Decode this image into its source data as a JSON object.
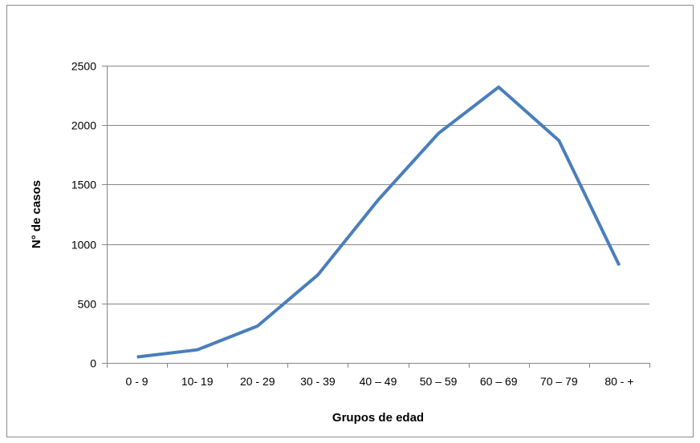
{
  "chart_data": {
    "type": "line",
    "title": "",
    "xlabel": "Grupos de edad",
    "ylabel": "N° de casos",
    "categories": [
      "0 - 9",
      "10- 19",
      "20 - 29",
      "30 - 39",
      "40 – 49",
      "50 – 59",
      "60 – 69",
      "70 – 79",
      "80 - +"
    ],
    "series": [
      {
        "values": [
          50,
          110,
          310,
          740,
          1370,
          1930,
          2320,
          1870,
          820
        ]
      }
    ],
    "ylim": [
      0,
      2500
    ],
    "yticks": [
      0,
      500,
      1000,
      1500,
      2000,
      2500
    ],
    "grid": true,
    "legend": "none",
    "colors": {
      "line": "#4a7ebb",
      "grid": "#868686",
      "axis": "#868686"
    }
  }
}
